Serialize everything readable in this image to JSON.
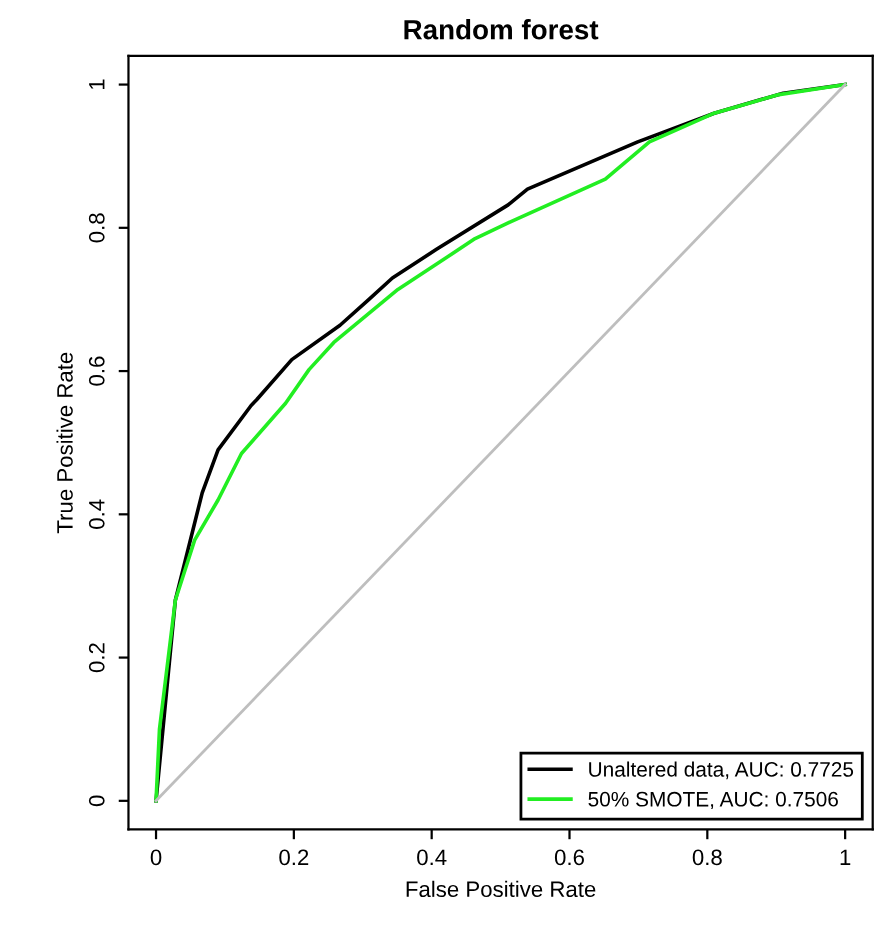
{
  "chart_data": {
    "type": "line",
    "title": "Random forest",
    "xlabel": "False Positive Rate",
    "ylabel": "True Positive Rate",
    "xlim": [
      -0.04,
      1.04
    ],
    "ylim": [
      -0.04,
      1.04
    ],
    "xticks": [
      0,
      0.2,
      0.4,
      0.6,
      0.8,
      1
    ],
    "yticks": [
      0,
      0.2,
      0.4,
      0.6,
      0.8,
      1
    ],
    "grid": false,
    "legend": "bottom right",
    "series": [
      {
        "name": "Unaltered data, AUC: 0.7725",
        "color": "#000000",
        "x": [
          0,
          0.028,
          0.067,
          0.09,
          0.138,
          0.146,
          0.197,
          0.267,
          0.309,
          0.343,
          0.407,
          0.511,
          0.539,
          0.699,
          0.81,
          0.91,
          1
        ],
        "values": [
          0,
          0.28,
          0.43,
          0.49,
          0.552,
          0.56,
          0.616,
          0.664,
          0.7,
          0.73,
          0.77,
          0.832,
          0.854,
          0.92,
          0.96,
          0.988,
          1
        ]
      },
      {
        "name": "50% SMOTE, AUC: 0.7506",
        "color": "#22ee22",
        "x": [
          0,
          0.005,
          0.028,
          0.056,
          0.09,
          0.124,
          0.188,
          0.222,
          0.258,
          0.351,
          0.427,
          0.463,
          0.511,
          0.652,
          0.716,
          0.81,
          0.904,
          1
        ],
        "values": [
          0,
          0.1,
          0.28,
          0.364,
          0.42,
          0.485,
          0.555,
          0.602,
          0.64,
          0.714,
          0.762,
          0.785,
          0.807,
          0.868,
          0.92,
          0.96,
          0.986,
          1
        ]
      },
      {
        "color": "#bebebe",
        "x": [
          0,
          1
        ],
        "values": [
          0,
          1
        ]
      }
    ]
  }
}
